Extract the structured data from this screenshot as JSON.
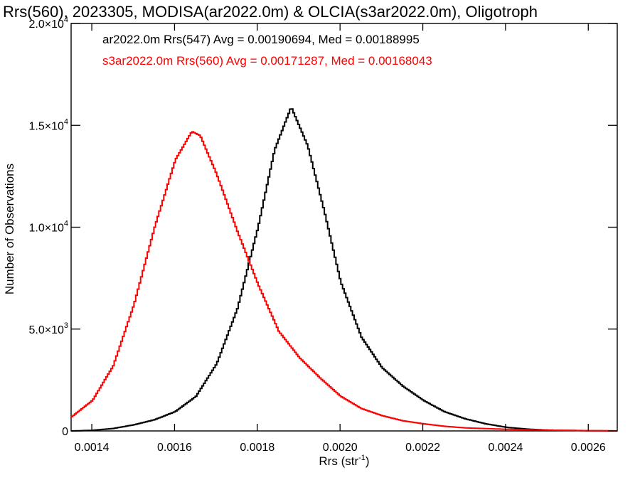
{
  "chart_data": {
    "type": "line",
    "title": "Rrs(560), 2023305, MODISA(ar2022.0m) & OLCIA(s3ar2022.0m), Oligotroph",
    "xlabel": "Rrs (str",
    "xlabel_sup": "-1",
    "xlabel_end": ")",
    "ylabel": "Number of Observations",
    "xlim": [
      0.00135,
      0.00267
    ],
    "ylim": [
      0,
      20000
    ],
    "x_ticks": [
      {
        "value": 0.0014,
        "label": "0.0014"
      },
      {
        "value": 0.0016,
        "label": "0.0016"
      },
      {
        "value": 0.0018,
        "label": "0.0018"
      },
      {
        "value": 0.002,
        "label": "0.0020"
      },
      {
        "value": 0.0022,
        "label": "0.0022"
      },
      {
        "value": 0.0024,
        "label": "0.0024"
      },
      {
        "value": 0.0026,
        "label": "0.0026"
      }
    ],
    "y_ticks": [
      {
        "value": 0,
        "mant": "0",
        "exp": ""
      },
      {
        "value": 5000,
        "mant": "5.0×10",
        "exp": "3"
      },
      {
        "value": 10000,
        "mant": "1.0×10",
        "exp": "4"
      },
      {
        "value": 15000,
        "mant": "1.5×10",
        "exp": "4"
      },
      {
        "value": 20000,
        "mant": "2.0×10",
        "exp": "4"
      }
    ],
    "legend": [
      {
        "text": "ar2022.0m Rrs(547) Avg = 0.00190694, Med = 0.00188995",
        "color": "#000000"
      },
      {
        "text": "s3ar2022.0m Rrs(560) Avg = 0.00171287, Med = 0.00168043",
        "color": "#ff0000"
      }
    ],
    "series": [
      {
        "color": "#000000",
        "style": "step",
        "points": [
          [
            0.00135,
            0
          ],
          [
            0.0014,
            30
          ],
          [
            0.00145,
            120
          ],
          [
            0.0015,
            300
          ],
          [
            0.00155,
            550
          ],
          [
            0.0016,
            950
          ],
          [
            0.00165,
            1700
          ],
          [
            0.0017,
            3300
          ],
          [
            0.00175,
            6000
          ],
          [
            0.0018,
            10000
          ],
          [
            0.00184,
            13800
          ],
          [
            0.00188,
            15900
          ],
          [
            0.00192,
            14000
          ],
          [
            0.00196,
            10800
          ],
          [
            0.002,
            7300
          ],
          [
            0.00205,
            4600
          ],
          [
            0.0021,
            3100
          ],
          [
            0.00215,
            2200
          ],
          [
            0.0022,
            1500
          ],
          [
            0.00225,
            950
          ],
          [
            0.0023,
            600
          ],
          [
            0.00235,
            350
          ],
          [
            0.0024,
            180
          ],
          [
            0.00245,
            90
          ],
          [
            0.0025,
            40
          ],
          [
            0.0026,
            10
          ],
          [
            0.00267,
            0
          ]
        ]
      },
      {
        "color": "#ff0000",
        "style": "step",
        "points": [
          [
            0.00135,
            700
          ],
          [
            0.0014,
            1500
          ],
          [
            0.00145,
            3200
          ],
          [
            0.0015,
            6200
          ],
          [
            0.00155,
            10000
          ],
          [
            0.0016,
            13300
          ],
          [
            0.00164,
            14700
          ],
          [
            0.00166,
            14500
          ],
          [
            0.0017,
            12600
          ],
          [
            0.00175,
            9800
          ],
          [
            0.0018,
            7200
          ],
          [
            0.00185,
            4900
          ],
          [
            0.0019,
            3600
          ],
          [
            0.00195,
            2600
          ],
          [
            0.002,
            1700
          ],
          [
            0.00205,
            1100
          ],
          [
            0.0021,
            750
          ],
          [
            0.00215,
            500
          ],
          [
            0.0022,
            350
          ],
          [
            0.00225,
            230
          ],
          [
            0.0023,
            150
          ],
          [
            0.0024,
            80
          ],
          [
            0.0025,
            40
          ],
          [
            0.0026,
            15
          ],
          [
            0.00267,
            0
          ]
        ]
      }
    ]
  }
}
